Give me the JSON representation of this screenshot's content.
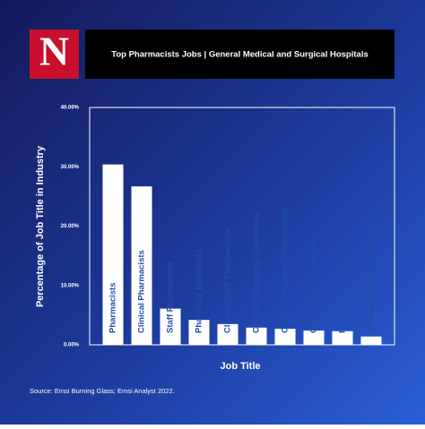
{
  "header": {
    "logo": "N",
    "title": "Top Pharmacists Jobs | General Medical and Surgical Hospitals"
  },
  "chart_data": {
    "type": "bar",
    "categories": [
      "Pharmacists",
      "Clinical Pharmacists",
      "Staff Pharmacists",
      "Pharmacy Residents",
      "Clinical Staff Pharmacists",
      "Clinical Pharmacy Specialists",
      "Clinical Oncology Pharmacists",
      "Oncology Pharmacists",
      "Hospital Pharmacists",
      "Clinical Research Pharmacists"
    ],
    "values": [
      30.4,
      26.7,
      6.1,
      4.2,
      3.5,
      2.9,
      2.7,
      2.4,
      2.3,
      1.4
    ],
    "color": "#ffffff",
    "label_color": "#1f4ea8",
    "ylim": [
      0,
      40
    ],
    "yticks": [
      {
        "value": 0,
        "label": "0.00%"
      },
      {
        "value": 10,
        "label": "10.00%"
      },
      {
        "value": 20,
        "label": "20.00%"
      },
      {
        "value": 30,
        "label": "30.00%"
      },
      {
        "value": 40,
        "label": "40.00%"
      }
    ],
    "ylabel": "Percentage of Job Title in Industry",
    "xlabel": "Job Title",
    "grid": false
  },
  "footer": {
    "source": "Source: Emsi Burning Glass; Emsi Analyst 2022."
  }
}
